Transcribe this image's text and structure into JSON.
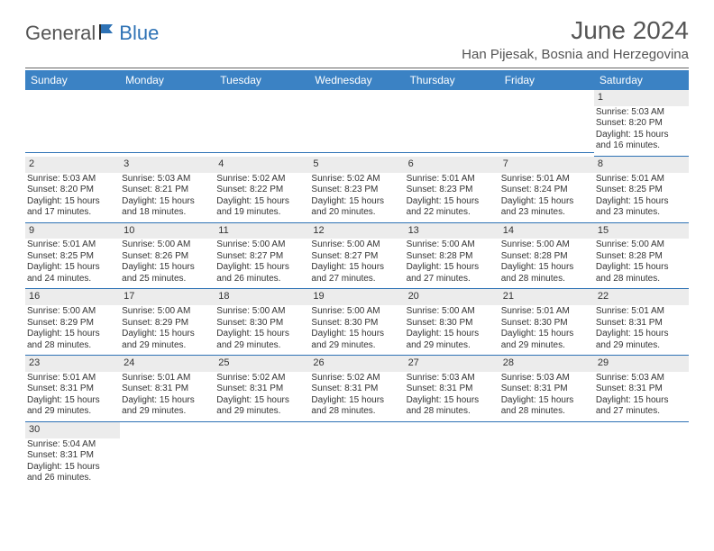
{
  "logo": {
    "text1": "General",
    "text2": "Blue"
  },
  "title": {
    "month": "June 2024",
    "location": "Han Pijesak, Bosnia and Herzegovina"
  },
  "daysOfWeek": [
    "Sunday",
    "Monday",
    "Tuesday",
    "Wednesday",
    "Thursday",
    "Friday",
    "Saturday"
  ],
  "colors": {
    "headerBg": "#3b82c4",
    "headerText": "#ffffff",
    "daynumBg": "#ececec",
    "ruleColor": "#2e72b5",
    "bodyText": "#333333",
    "titleText": "#555555",
    "logoBlue": "#2e72b5"
  },
  "weeks": [
    [
      null,
      null,
      null,
      null,
      null,
      null,
      {
        "n": "1",
        "sunrise": "Sunrise: 5:03 AM",
        "sunset": "Sunset: 8:20 PM",
        "day1": "Daylight: 15 hours",
        "day2": "and 16 minutes."
      }
    ],
    [
      {
        "n": "2",
        "sunrise": "Sunrise: 5:03 AM",
        "sunset": "Sunset: 8:20 PM",
        "day1": "Daylight: 15 hours",
        "day2": "and 17 minutes."
      },
      {
        "n": "3",
        "sunrise": "Sunrise: 5:03 AM",
        "sunset": "Sunset: 8:21 PM",
        "day1": "Daylight: 15 hours",
        "day2": "and 18 minutes."
      },
      {
        "n": "4",
        "sunrise": "Sunrise: 5:02 AM",
        "sunset": "Sunset: 8:22 PM",
        "day1": "Daylight: 15 hours",
        "day2": "and 19 minutes."
      },
      {
        "n": "5",
        "sunrise": "Sunrise: 5:02 AM",
        "sunset": "Sunset: 8:23 PM",
        "day1": "Daylight: 15 hours",
        "day2": "and 20 minutes."
      },
      {
        "n": "6",
        "sunrise": "Sunrise: 5:01 AM",
        "sunset": "Sunset: 8:23 PM",
        "day1": "Daylight: 15 hours",
        "day2": "and 22 minutes."
      },
      {
        "n": "7",
        "sunrise": "Sunrise: 5:01 AM",
        "sunset": "Sunset: 8:24 PM",
        "day1": "Daylight: 15 hours",
        "day2": "and 23 minutes."
      },
      {
        "n": "8",
        "sunrise": "Sunrise: 5:01 AM",
        "sunset": "Sunset: 8:25 PM",
        "day1": "Daylight: 15 hours",
        "day2": "and 23 minutes."
      }
    ],
    [
      {
        "n": "9",
        "sunrise": "Sunrise: 5:01 AM",
        "sunset": "Sunset: 8:25 PM",
        "day1": "Daylight: 15 hours",
        "day2": "and 24 minutes."
      },
      {
        "n": "10",
        "sunrise": "Sunrise: 5:00 AM",
        "sunset": "Sunset: 8:26 PM",
        "day1": "Daylight: 15 hours",
        "day2": "and 25 minutes."
      },
      {
        "n": "11",
        "sunrise": "Sunrise: 5:00 AM",
        "sunset": "Sunset: 8:27 PM",
        "day1": "Daylight: 15 hours",
        "day2": "and 26 minutes."
      },
      {
        "n": "12",
        "sunrise": "Sunrise: 5:00 AM",
        "sunset": "Sunset: 8:27 PM",
        "day1": "Daylight: 15 hours",
        "day2": "and 27 minutes."
      },
      {
        "n": "13",
        "sunrise": "Sunrise: 5:00 AM",
        "sunset": "Sunset: 8:28 PM",
        "day1": "Daylight: 15 hours",
        "day2": "and 27 minutes."
      },
      {
        "n": "14",
        "sunrise": "Sunrise: 5:00 AM",
        "sunset": "Sunset: 8:28 PM",
        "day1": "Daylight: 15 hours",
        "day2": "and 28 minutes."
      },
      {
        "n": "15",
        "sunrise": "Sunrise: 5:00 AM",
        "sunset": "Sunset: 8:28 PM",
        "day1": "Daylight: 15 hours",
        "day2": "and 28 minutes."
      }
    ],
    [
      {
        "n": "16",
        "sunrise": "Sunrise: 5:00 AM",
        "sunset": "Sunset: 8:29 PM",
        "day1": "Daylight: 15 hours",
        "day2": "and 28 minutes."
      },
      {
        "n": "17",
        "sunrise": "Sunrise: 5:00 AM",
        "sunset": "Sunset: 8:29 PM",
        "day1": "Daylight: 15 hours",
        "day2": "and 29 minutes."
      },
      {
        "n": "18",
        "sunrise": "Sunrise: 5:00 AM",
        "sunset": "Sunset: 8:30 PM",
        "day1": "Daylight: 15 hours",
        "day2": "and 29 minutes."
      },
      {
        "n": "19",
        "sunrise": "Sunrise: 5:00 AM",
        "sunset": "Sunset: 8:30 PM",
        "day1": "Daylight: 15 hours",
        "day2": "and 29 minutes."
      },
      {
        "n": "20",
        "sunrise": "Sunrise: 5:00 AM",
        "sunset": "Sunset: 8:30 PM",
        "day1": "Daylight: 15 hours",
        "day2": "and 29 minutes."
      },
      {
        "n": "21",
        "sunrise": "Sunrise: 5:01 AM",
        "sunset": "Sunset: 8:30 PM",
        "day1": "Daylight: 15 hours",
        "day2": "and 29 minutes."
      },
      {
        "n": "22",
        "sunrise": "Sunrise: 5:01 AM",
        "sunset": "Sunset: 8:31 PM",
        "day1": "Daylight: 15 hours",
        "day2": "and 29 minutes."
      }
    ],
    [
      {
        "n": "23",
        "sunrise": "Sunrise: 5:01 AM",
        "sunset": "Sunset: 8:31 PM",
        "day1": "Daylight: 15 hours",
        "day2": "and 29 minutes."
      },
      {
        "n": "24",
        "sunrise": "Sunrise: 5:01 AM",
        "sunset": "Sunset: 8:31 PM",
        "day1": "Daylight: 15 hours",
        "day2": "and 29 minutes."
      },
      {
        "n": "25",
        "sunrise": "Sunrise: 5:02 AM",
        "sunset": "Sunset: 8:31 PM",
        "day1": "Daylight: 15 hours",
        "day2": "and 29 minutes."
      },
      {
        "n": "26",
        "sunrise": "Sunrise: 5:02 AM",
        "sunset": "Sunset: 8:31 PM",
        "day1": "Daylight: 15 hours",
        "day2": "and 28 minutes."
      },
      {
        "n": "27",
        "sunrise": "Sunrise: 5:03 AM",
        "sunset": "Sunset: 8:31 PM",
        "day1": "Daylight: 15 hours",
        "day2": "and 28 minutes."
      },
      {
        "n": "28",
        "sunrise": "Sunrise: 5:03 AM",
        "sunset": "Sunset: 8:31 PM",
        "day1": "Daylight: 15 hours",
        "day2": "and 28 minutes."
      },
      {
        "n": "29",
        "sunrise": "Sunrise: 5:03 AM",
        "sunset": "Sunset: 8:31 PM",
        "day1": "Daylight: 15 hours",
        "day2": "and 27 minutes."
      }
    ],
    [
      {
        "n": "30",
        "sunrise": "Sunrise: 5:04 AM",
        "sunset": "Sunset: 8:31 PM",
        "day1": "Daylight: 15 hours",
        "day2": "and 26 minutes."
      },
      null,
      null,
      null,
      null,
      null,
      null
    ]
  ]
}
